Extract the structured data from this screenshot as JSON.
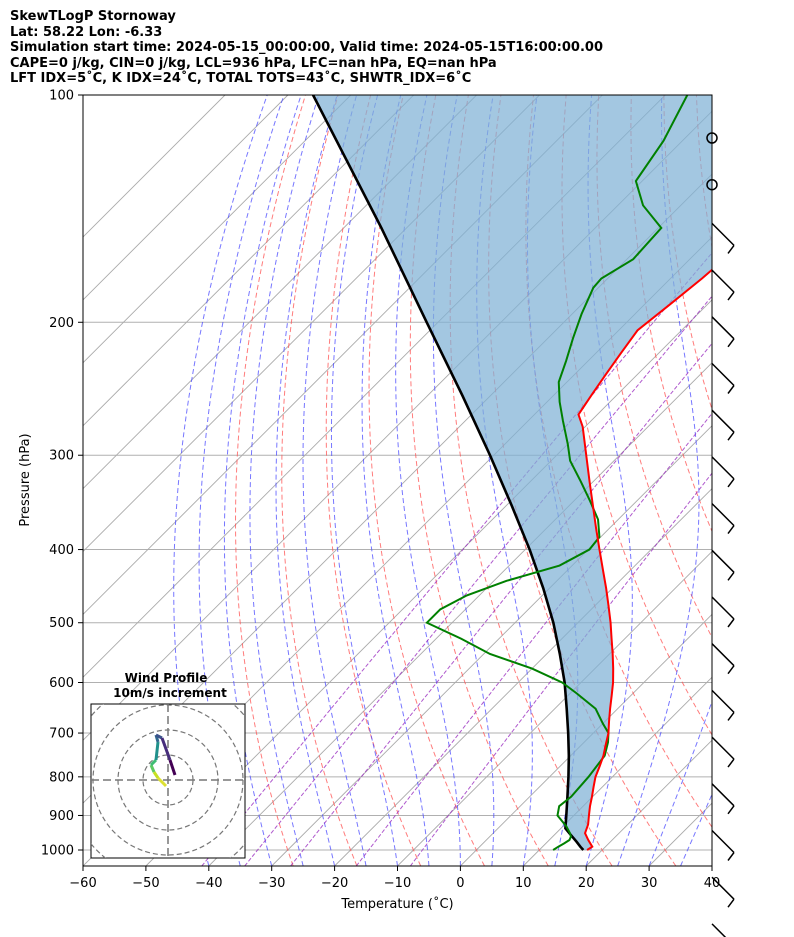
{
  "header": {
    "line1": "SkewTLogP Stornoway",
    "line2": "Lat: 58.22   Lon: -6.33",
    "line3": "Simulation start time: 2024-05-15_00:00:00, Valid time: 2024-05-15T16:00:00.00",
    "line4": "CAPE=0 j/kg, CIN=0 j/kg, LCL=936 hPa, LFC=nan hPa, EQ=nan hPa",
    "line5": "LFT IDX=5˚C, K IDX=24˚C, TOTAL TOTS=43˚C, SHWTR_IDX=6˚C"
  },
  "chart_data": {
    "type": "line",
    "subtype": "skew-t log-p",
    "xlabel": "Temperature (˚C)",
    "ylabel": "Pressure (hPa)",
    "xlim": [
      -60,
      40
    ],
    "ylim": [
      1050,
      100
    ],
    "yscale": "log",
    "xticks": [
      -60,
      -50,
      -40,
      -30,
      -20,
      -10,
      0,
      10,
      20,
      30,
      40
    ],
    "xtick_labels": [
      "−60",
      "−50",
      "−40",
      "−30",
      "−20",
      "−10",
      "0",
      "10",
      "20",
      "30",
      "40"
    ],
    "yticks": [
      100,
      200,
      300,
      400,
      500,
      600,
      700,
      800,
      900,
      1000
    ],
    "grid": true,
    "colors": {
      "temperature": "#ff0000",
      "dewpoint": "#008000",
      "parcel": "#000000",
      "cin_fill": "#7fb1d6",
      "dry_adiabats": "#ff5050",
      "moist_adiabats": "#4a4aff",
      "mixing_ratio": "#9b30c0",
      "isotherms": "#aaaaaa"
    },
    "series": [
      {
        "key": "temperature",
        "p": [
          1000,
          990,
          970,
          950,
          925,
          900,
          875,
          850,
          825,
          800,
          775,
          750,
          725,
          700,
          675,
          650,
          625,
          600,
          575,
          550,
          525,
          500,
          475,
          450,
          425,
          400,
          375,
          350,
          325,
          300,
          275,
          265,
          250,
          235,
          220,
          205,
          190,
          175,
          165,
          150,
          140,
          130,
          125,
          115,
          110,
          105,
          100
        ],
        "t": [
          17.6,
          17.9,
          16.2,
          14.6,
          13.7,
          12.4,
          11.1,
          9.9,
          8.6,
          7.3,
          6.3,
          5.2,
          3.8,
          2.4,
          0.6,
          -1.2,
          -3.0,
          -4.9,
          -7.1,
          -9.5,
          -12.1,
          -14.8,
          -17.8,
          -21.0,
          -24.5,
          -28.2,
          -32.1,
          -36.2,
          -40.6,
          -45.3,
          -50.4,
          -53.0,
          -54.0,
          -55.0,
          -56.0,
          -57.0,
          -56.0,
          -55.0,
          -54.5,
          -53.0,
          -53.0,
          -54.0,
          -54.0,
          -53.5,
          -53.3,
          -53.5,
          -53.0
        ]
      },
      {
        "key": "dewpoint",
        "p": [
          1000,
          990,
          980,
          970,
          960,
          950,
          930,
          900,
          875,
          850,
          800,
          750,
          720,
          700,
          680,
          650,
          620,
          600,
          575,
          550,
          525,
          500,
          480,
          460,
          440,
          420,
          400,
          385,
          365,
          345,
          325,
          305,
          290,
          270,
          255,
          240,
          225,
          210,
          195,
          180,
          175,
          165,
          150,
          140,
          130,
          115,
          100
        ],
        "t": [
          12.2,
          12.5,
          12.9,
          13.2,
          12.9,
          12.2,
          10.5,
          7.4,
          6.2,
          6.6,
          6.2,
          5.4,
          3.8,
          2.4,
          0.0,
          -3.5,
          -9.0,
          -13.0,
          -20.0,
          -29.0,
          -36.0,
          -44.0,
          -44.0,
          -42.0,
          -38.0,
          -32.0,
          -29.8,
          -30.2,
          -33.2,
          -37.4,
          -42.0,
          -47.0,
          -50.0,
          -54.5,
          -58.0,
          -61.3,
          -63.5,
          -66.0,
          -68.5,
          -70.8,
          -71.0,
          -69.0,
          -69.5,
          -76.0,
          -81.0,
          -83.0,
          -86.5
        ]
      },
      {
        "key": "parcel",
        "p": [
          1000,
          990,
          975,
          950,
          936,
          900,
          850,
          800,
          750,
          700,
          650,
          600,
          550,
          500,
          450,
          400,
          350,
          300,
          250,
          200,
          150,
          100
        ],
        "t": [
          17.0,
          16.0,
          14.6,
          12.1,
          10.7,
          8.8,
          6.0,
          3.0,
          -0.3,
          -4.0,
          -8.1,
          -12.6,
          -17.9,
          -23.9,
          -31.0,
          -39.3,
          -49.1,
          -60.6,
          -74.5,
          -91.8,
          -114.0,
          -146.0
        ]
      }
    ],
    "hodograph": {
      "title": "Wind Profile",
      "subtitle": "10m/s increment"
    }
  }
}
